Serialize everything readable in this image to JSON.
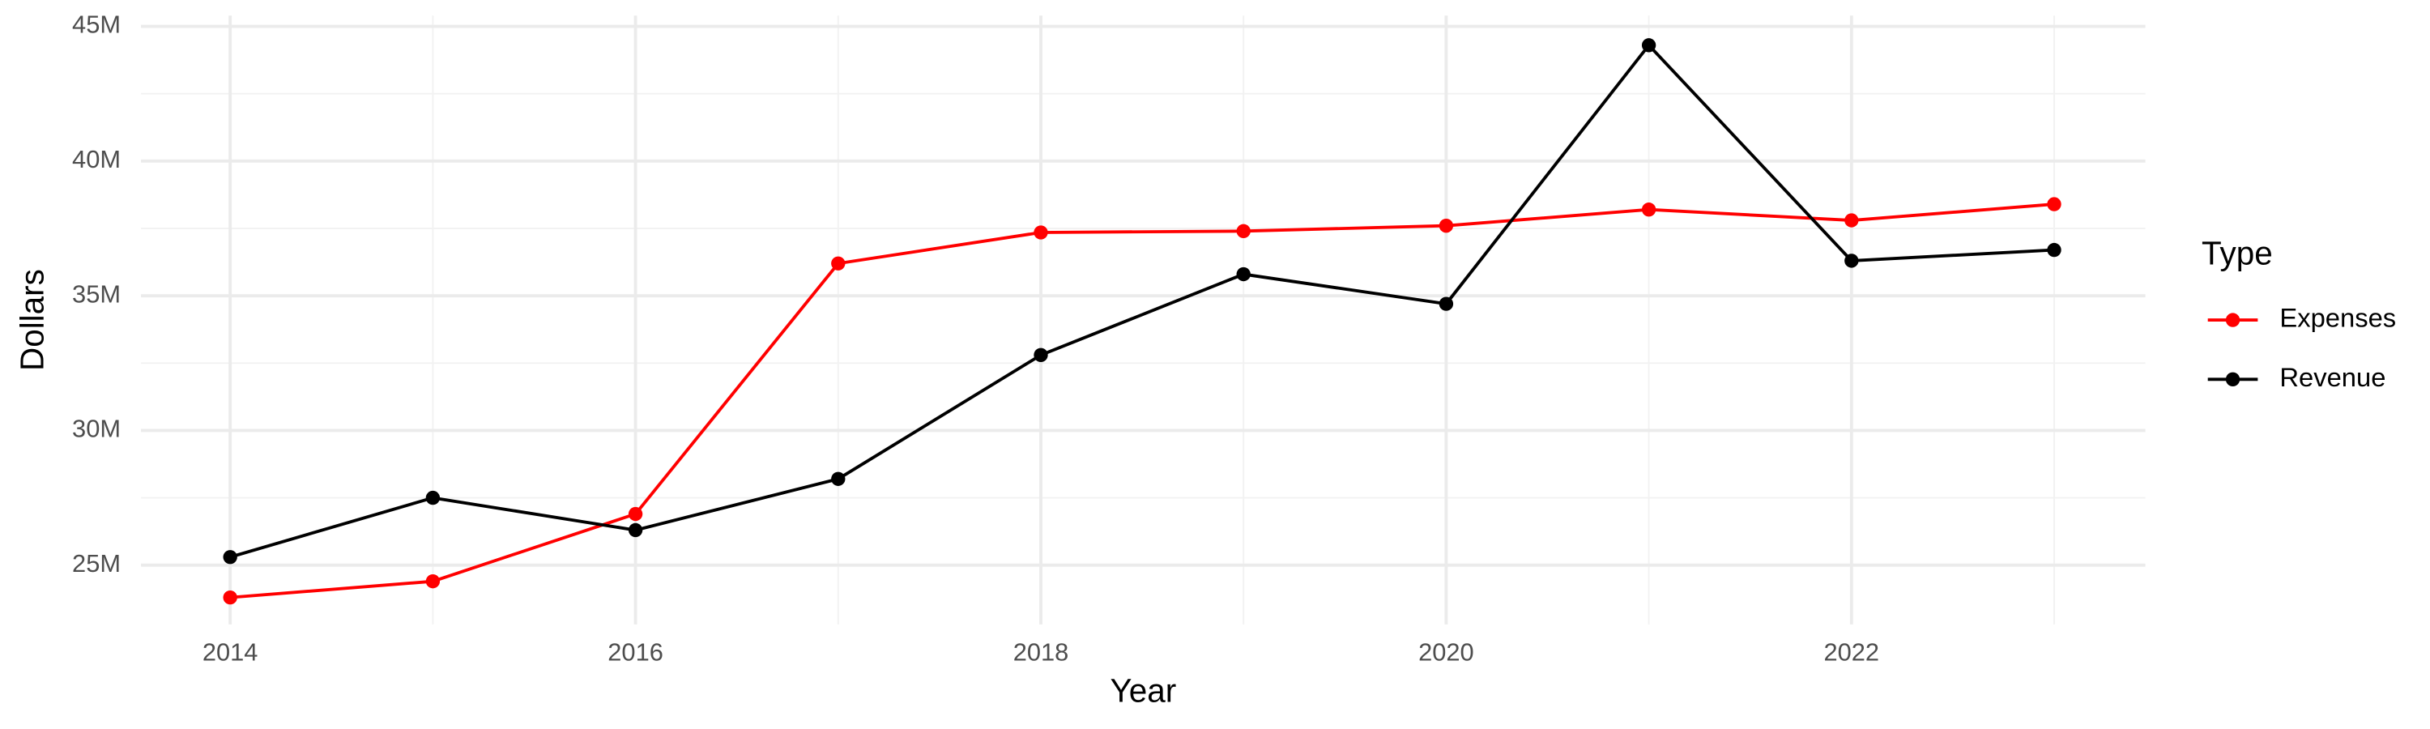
{
  "chart_data": {
    "type": "line",
    "x_label": "Year",
    "y_label": "Dollars",
    "legend_title": "Type",
    "legend": "right",
    "grid": true,
    "x": [
      2014,
      2015,
      2016,
      2017,
      2018,
      2019,
      2020,
      2021,
      2022,
      2023
    ],
    "series": [
      {
        "name": "Expenses",
        "color": "#ff0000",
        "values": [
          23800000,
          24400000,
          26900000,
          36200000,
          37350000,
          37400000,
          37600000,
          38200000,
          37800000,
          38400000
        ]
      },
      {
        "name": "Revenue",
        "color": "#000000",
        "values": [
          25300000,
          27500000,
          26300000,
          28200000,
          32800000,
          35800000,
          34700000,
          44300000,
          36300000,
          36700000
        ]
      }
    ],
    "xlim": [
      2013.56,
      2023.45
    ],
    "xticks": [
      2014,
      2016,
      2018,
      2020,
      2022
    ],
    "ylim": [
      22800000,
      45400000
    ],
    "yticks": [
      {
        "value": 25000000,
        "label": "25M"
      },
      {
        "value": 30000000,
        "label": "30M"
      },
      {
        "value": 35000000,
        "label": "35M"
      },
      {
        "value": 40000000,
        "label": "40M"
      },
      {
        "value": 45000000,
        "label": "45M"
      }
    ]
  }
}
